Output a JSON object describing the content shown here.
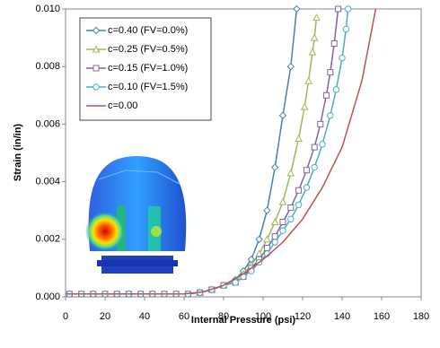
{
  "chart_data": {
    "type": "line",
    "xlabel": "Internal Pressure (psi)",
    "ylabel": "Strain (in/in)",
    "xlim": [
      0,
      180
    ],
    "xticks": [
      0,
      20,
      40,
      60,
      80,
      100,
      120,
      140,
      160,
      180
    ],
    "ylim": [
      0,
      0.01
    ],
    "yticks": [
      {
        "value": 0,
        "label": "0.000"
      },
      {
        "value": 0.002,
        "label": "0.002"
      },
      {
        "value": 0.004,
        "label": "0.004"
      },
      {
        "value": 0.006,
        "label": "0.006"
      },
      {
        "value": 0.008,
        "label": "0.008"
      },
      {
        "value": 0.01,
        "label": "0.010"
      }
    ],
    "grid": false,
    "legend": "upper left",
    "series": [
      {
        "name": "c=0.40 (FV=0.0%)",
        "color": "#4a7ebb",
        "marker": "diamond",
        "x": [
          2,
          8,
          14,
          20,
          26,
          32,
          38,
          44,
          50,
          56,
          62,
          68,
          74,
          80,
          86,
          90,
          94,
          98,
          102,
          106,
          110,
          114,
          117
        ],
        "values": [
          0.0001,
          0.0001,
          0.0001,
          0.0001,
          0.0001,
          0.0001,
          0.0001,
          0.0001,
          0.0001,
          0.0001,
          0.0001,
          0.00015,
          0.00025,
          0.0004,
          0.0006,
          0.0009,
          0.0013,
          0.002,
          0.003,
          0.0045,
          0.0063,
          0.008,
          0.01
        ]
      },
      {
        "name": "c=0.25 (FV=0.5%)",
        "color": "#9bbb59",
        "marker": "triangle",
        "x": [
          2,
          8,
          14,
          20,
          26,
          32,
          38,
          44,
          50,
          56,
          62,
          68,
          74,
          80,
          86,
          90,
          94,
          98,
          102,
          106,
          110,
          114,
          118,
          121,
          123,
          125,
          126,
          127
        ],
        "values": [
          0.0001,
          0.0001,
          0.0001,
          0.0001,
          0.0001,
          0.0001,
          0.0001,
          0.0001,
          0.0001,
          0.0001,
          0.0001,
          0.00015,
          0.00025,
          0.0004,
          0.0006,
          0.0008,
          0.0011,
          0.0015,
          0.002,
          0.0026,
          0.0033,
          0.0043,
          0.0055,
          0.0066,
          0.0075,
          0.0085,
          0.009,
          0.0097
        ]
      },
      {
        "name": "c=0.15 (FV=1.0%)",
        "color": "#8064a2",
        "marker": "square",
        "x": [
          2,
          8,
          14,
          20,
          26,
          32,
          38,
          44,
          50,
          56,
          62,
          68,
          74,
          80,
          86,
          90,
          94,
          98,
          102,
          106,
          110,
          114,
          118,
          122,
          126,
          129,
          132,
          134,
          136,
          138
        ],
        "values": [
          0.0001,
          0.0001,
          0.0001,
          0.0001,
          0.0001,
          0.0001,
          0.0001,
          0.0001,
          0.0001,
          0.0001,
          0.0001,
          0.00015,
          0.00025,
          0.0004,
          0.0005,
          0.0007,
          0.001,
          0.0013,
          0.0017,
          0.0021,
          0.0026,
          0.0031,
          0.0037,
          0.0044,
          0.0052,
          0.006,
          0.007,
          0.0078,
          0.0088,
          0.01
        ]
      },
      {
        "name": "c=0.10 (FV=1.5%)",
        "color": "#4bacc6",
        "marker": "circle",
        "x": [
          2,
          8,
          14,
          20,
          26,
          32,
          38,
          44,
          50,
          56,
          62,
          68,
          74,
          80,
          86,
          90,
          94,
          98,
          102,
          106,
          110,
          114,
          118,
          122,
          126,
          130,
          134,
          137,
          140,
          142,
          143
        ],
        "values": [
          0.0001,
          0.0001,
          0.0001,
          0.0001,
          0.0001,
          0.0001,
          0.0001,
          0.0001,
          0.0001,
          0.0001,
          0.0001,
          0.00015,
          0.00025,
          0.0004,
          0.0005,
          0.0007,
          0.0009,
          0.0012,
          0.0015,
          0.0019,
          0.0023,
          0.0027,
          0.0032,
          0.0038,
          0.0045,
          0.0053,
          0.0063,
          0.0072,
          0.0083,
          0.0093,
          0.01
        ]
      },
      {
        "name": "c=0.00",
        "color": "#c0504d",
        "marker": "none",
        "x": [
          0,
          20,
          40,
          60,
          70,
          80,
          90,
          100,
          110,
          120,
          130,
          140,
          150,
          157
        ],
        "values": [
          0.0001,
          0.0001,
          0.0001,
          0.0001,
          0.00018,
          0.0004,
          0.0008,
          0.0013,
          0.0019,
          0.0027,
          0.0038,
          0.0052,
          0.0075,
          0.01
        ]
      }
    ]
  }
}
